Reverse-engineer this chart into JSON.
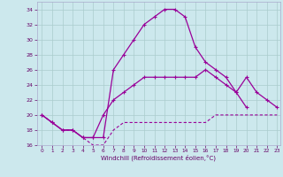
{
  "xlabel": "Windchill (Refroidissement éolien,°C)",
  "bg_color": "#cce8ed",
  "grid_color": "#aacccc",
  "line_color": "#990099",
  "xlim": [
    -0.5,
    23.3
  ],
  "ylim": [
    16,
    35
  ],
  "xticks": [
    0,
    1,
    2,
    3,
    4,
    5,
    6,
    7,
    8,
    9,
    10,
    11,
    12,
    13,
    14,
    15,
    16,
    17,
    18,
    19,
    20,
    21,
    22,
    23
  ],
  "yticks": [
    16,
    18,
    20,
    22,
    24,
    26,
    28,
    30,
    32,
    34
  ],
  "line1_x": [
    0,
    1,
    2,
    3,
    4,
    5,
    6,
    7,
    8,
    9,
    10,
    11,
    12,
    13,
    14,
    15,
    16,
    17,
    18,
    19,
    20,
    21,
    22,
    23
  ],
  "line1_y": [
    20,
    19,
    18,
    18,
    17,
    17,
    17,
    26,
    28,
    30,
    32,
    33,
    34,
    34,
    33,
    29,
    27,
    26,
    25,
    23,
    21,
    null,
    null,
    null
  ],
  "line2_x": [
    0,
    1,
    2,
    3,
    4,
    5,
    6,
    7,
    8,
    9,
    10,
    11,
    12,
    13,
    14,
    15,
    16,
    17,
    18,
    19,
    20,
    21,
    22,
    23
  ],
  "line2_y": [
    20,
    19,
    18,
    18,
    17,
    17,
    20,
    22,
    23,
    24,
    25,
    25,
    25,
    25,
    25,
    25,
    26,
    25,
    24,
    23,
    25,
    23,
    22,
    21
  ],
  "line3_x": [
    0,
    1,
    2,
    3,
    4,
    5,
    6,
    7,
    8,
    9,
    10,
    11,
    12,
    13,
    14,
    15,
    16,
    17,
    18,
    19,
    20,
    21,
    22,
    23
  ],
  "line3_y": [
    20,
    19,
    18,
    18,
    17,
    16,
    16,
    18,
    19,
    19,
    19,
    19,
    19,
    19,
    19,
    19,
    19,
    20,
    20,
    20,
    20,
    20,
    20,
    20
  ]
}
